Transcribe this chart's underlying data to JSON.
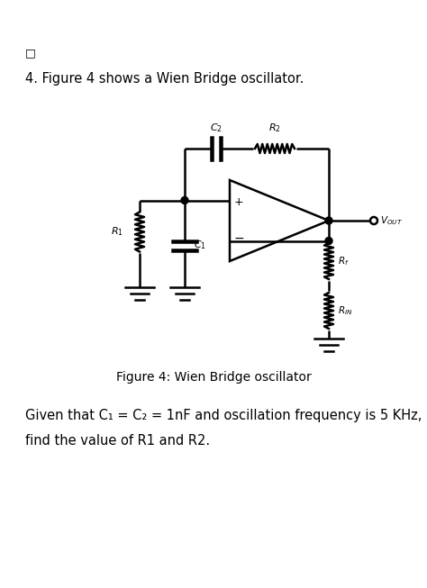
{
  "background_color": "#ffffff",
  "checkbox_symbol": "□",
  "question_number": "4.",
  "question_text": " Figure 4 shows a Wien Bridge oscillator.",
  "figure_caption": "Figure 4: Wien Bridge oscillator",
  "given_text_line1": "Given that C₁ = C₂ = 1nF and oscillation frequency is 5 KHz,",
  "given_text_line2": "find the value of R1 and R2.",
  "text_color": "#000000",
  "line_color": "#000000",
  "line_width": 1.8
}
